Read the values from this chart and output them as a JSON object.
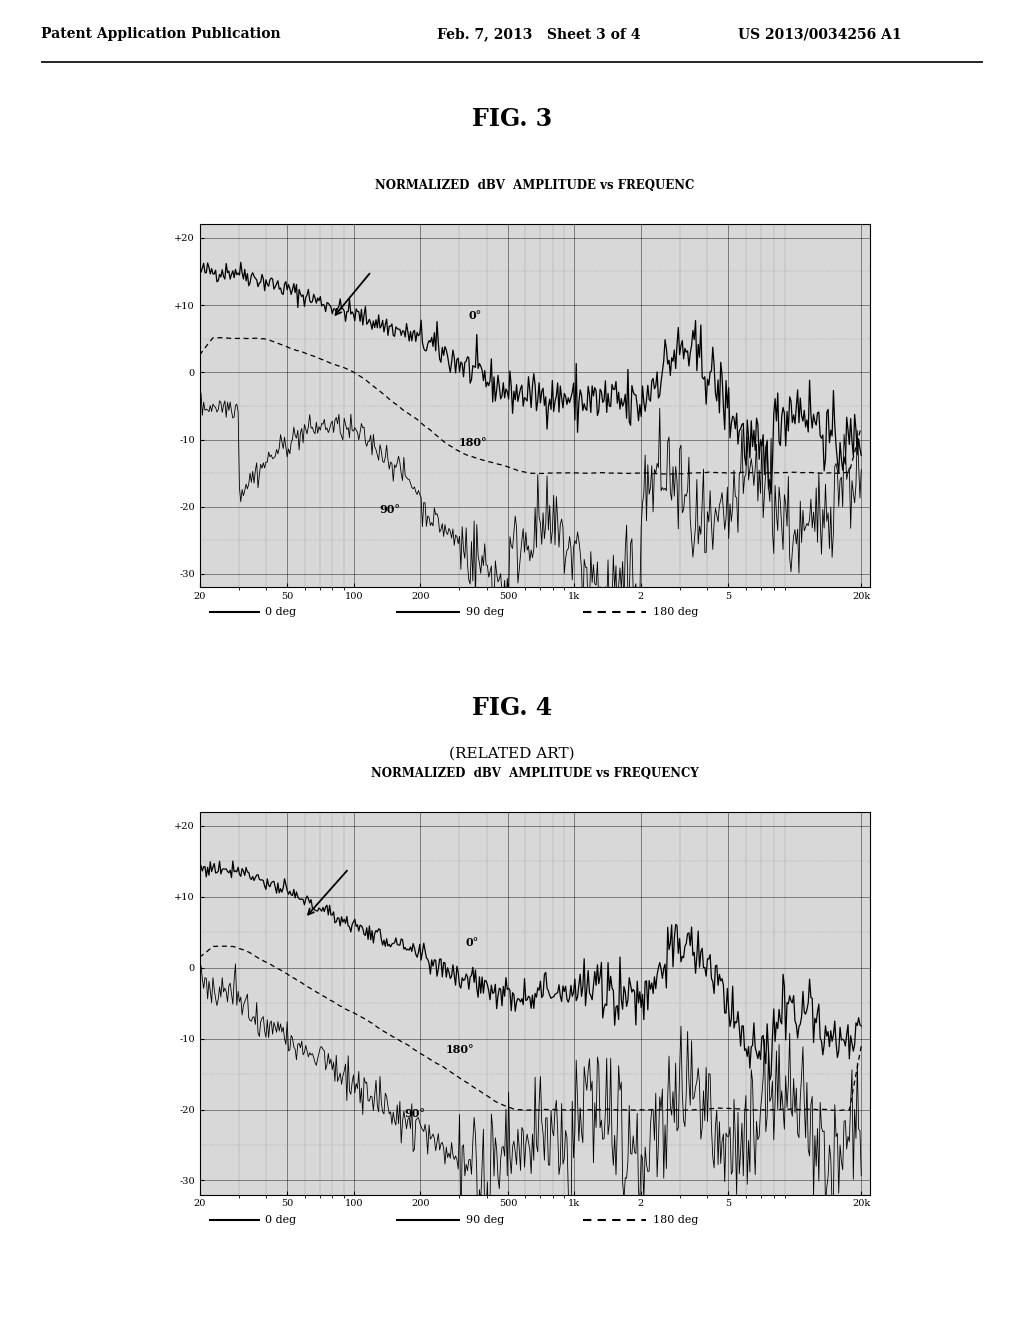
{
  "page_title_left": "Patent Application Publication",
  "page_title_mid": "Feb. 7, 2013   Sheet 3 of 4",
  "page_title_right": "US 2013/0034256 A1",
  "fig3_title": "FIG. 3",
  "fig4_title": "FIG. 4",
  "fig4_subtitle": "(RELATED ART)",
  "chart_title3": "NORMALIZED  dBV  AMPLITUDE vs FREQUENC",
  "chart_title4": "NORMALIZED  dBV  AMPLITUDE vs FREQUENCY",
  "bg_color": "#ffffff",
  "ylabel_vals": [
    20,
    10,
    0,
    -10,
    -20,
    -30
  ],
  "ylabel_labels": [
    "+20",
    "+10",
    "0",
    "-10",
    "-20",
    "-30"
  ],
  "xtick_freqs": [
    20,
    50,
    100,
    200,
    500,
    1000,
    2000,
    5000,
    20000
  ],
  "xtick_labels": [
    "20",
    "50",
    "100",
    "200",
    "500",
    "1k",
    "2",
    "5",
    "20k"
  ],
  "legend_0deg": "0 deg",
  "legend_90deg": "90 deg",
  "legend_180deg": "180 deg"
}
